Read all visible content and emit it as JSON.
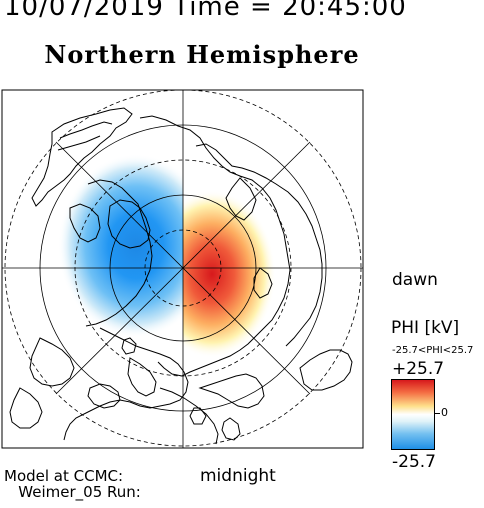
{
  "header": {
    "date_time_line": "10/07/2019 Time = 20:45:00"
  },
  "title": "Northern Hemisphere",
  "map": {
    "dawn_label": "dawn",
    "midnight_label": "midnight"
  },
  "colorbar": {
    "quantity_label": "PHI [kV]",
    "range_text": "-25.7<PHI<25.7",
    "max_label": "+25.7",
    "zero_label": "0",
    "min_label": "-25.7",
    "colors": {
      "max": "#d7191c",
      "zero": "#ffffff",
      "min": "#1f8fe6"
    }
  },
  "footer": {
    "model_line1": "Model at CCMC:",
    "model_line2": "   Weimer_05 Run:"
  }
}
